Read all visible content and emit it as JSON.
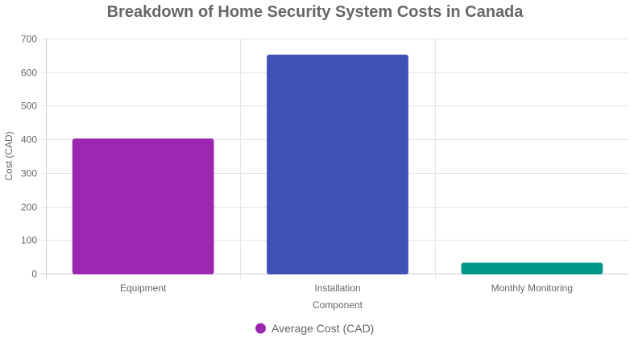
{
  "chart_data": {
    "type": "bar",
    "title": "Breakdown of Home Security System Costs in Canada",
    "xlabel": "Component",
    "ylabel": "Cost (CAD)",
    "categories": [
      "Equipment",
      "Installation",
      "Monthly Monitoring"
    ],
    "series": [
      {
        "name": "Average Cost (CAD)",
        "values": [
          400,
          650,
          30
        ],
        "colors": [
          "#9C27B0",
          "#3F51B5",
          "#009688"
        ],
        "legend_color": "#9C27B0"
      }
    ],
    "ylim": [
      0,
      700
    ],
    "yticks": [
      "0",
      "100",
      "200",
      "300",
      "400",
      "500",
      "600",
      "700"
    ],
    "grid": true,
    "legend_position": "bottom"
  }
}
